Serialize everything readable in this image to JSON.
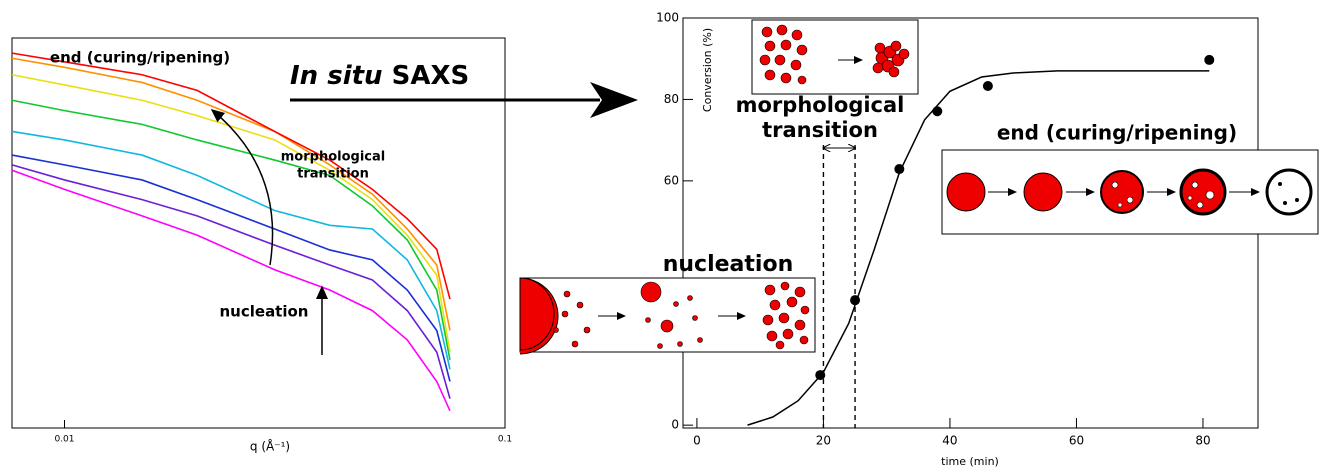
{
  "arrow_label": {
    "italic": "In situ",
    "rest": "SAXS"
  },
  "chart_data": [
    {
      "type": "line",
      "log_x": true,
      "log_y": true,
      "x_label": "q (Å⁻¹)",
      "xlim": [
        0.0076,
        0.1
      ],
      "ylim": [
        0.0001,
        1
      ],
      "xticks": [
        0.01,
        0.1
      ],
      "x": [
        0.0076,
        0.01,
        0.015,
        0.02,
        0.03,
        0.04,
        0.05,
        0.06,
        0.07,
        0.075
      ],
      "series": [
        {
          "color": "#ff00ff",
          "values": [
            0.044,
            0.028,
            0.015,
            0.0095,
            0.0042,
            0.0026,
            0.0016,
            0.0008,
            0.0003,
            0.00015
          ]
        },
        {
          "color": "#6a1fd8",
          "values": [
            0.05,
            0.035,
            0.022,
            0.015,
            0.0075,
            0.0047,
            0.0033,
            0.0016,
            0.0006,
            0.0002
          ]
        },
        {
          "color": "#1a2fd8",
          "values": [
            0.063,
            0.05,
            0.035,
            0.022,
            0.011,
            0.0067,
            0.0053,
            0.0026,
            0.001,
            0.0003
          ]
        },
        {
          "color": "#10b8e0",
          "values": [
            0.11,
            0.09,
            0.063,
            0.039,
            0.017,
            0.012,
            0.011,
            0.0053,
            0.0016,
            0.0004
          ]
        },
        {
          "color": "#10c830",
          "values": [
            0.23,
            0.18,
            0.13,
            0.09,
            0.056,
            0.039,
            0.019,
            0.0085,
            0.0026,
            0.0005
          ]
        },
        {
          "color": "#e8e010",
          "values": [
            0.42,
            0.33,
            0.23,
            0.16,
            0.09,
            0.044,
            0.022,
            0.0095,
            0.0037,
            0.0006
          ]
        },
        {
          "color": "#ff9000",
          "values": [
            0.62,
            0.5,
            0.35,
            0.23,
            0.11,
            0.05,
            0.025,
            0.011,
            0.0047,
            0.001
          ]
        },
        {
          "color": "#ff0000",
          "values": [
            0.7,
            0.57,
            0.42,
            0.29,
            0.11,
            0.056,
            0.028,
            0.014,
            0.0068,
            0.0021
          ]
        }
      ],
      "annotations": {
        "end": "end (curing/ripening)",
        "transition": [
          "morphological",
          "transition"
        ],
        "nucleation": "nucleation"
      }
    },
    {
      "type": "scatter",
      "x_label": "time (min)",
      "y_label": "Conversion (%)",
      "xlim": [
        -2.2,
        88.7
      ],
      "ylim": [
        -0.7,
        100
      ],
      "xticks": [
        0,
        20,
        40,
        60,
        80
      ],
      "yticks": [
        0,
        60,
        80,
        100
      ],
      "x": [
        19.5,
        25,
        32,
        38,
        46,
        81
      ],
      "values": [
        12.3,
        30.7,
        62.9,
        77.1,
        83.3,
        89.7
      ],
      "color": "#000000",
      "fit": {
        "x": [
          8,
          12,
          16,
          20,
          24,
          28,
          32,
          36,
          40,
          45,
          50,
          57,
          70,
          81
        ],
        "values": [
          0,
          2,
          6,
          13,
          25,
          43,
          62,
          75,
          82,
          85.5,
          86.5,
          87,
          87,
          87
        ]
      },
      "vlines": [
        20,
        25
      ],
      "insets": {
        "nucleation": "nucleation",
        "transition": [
          "morphological",
          "transition"
        ],
        "end": "end (curing/ripening)"
      }
    }
  ]
}
